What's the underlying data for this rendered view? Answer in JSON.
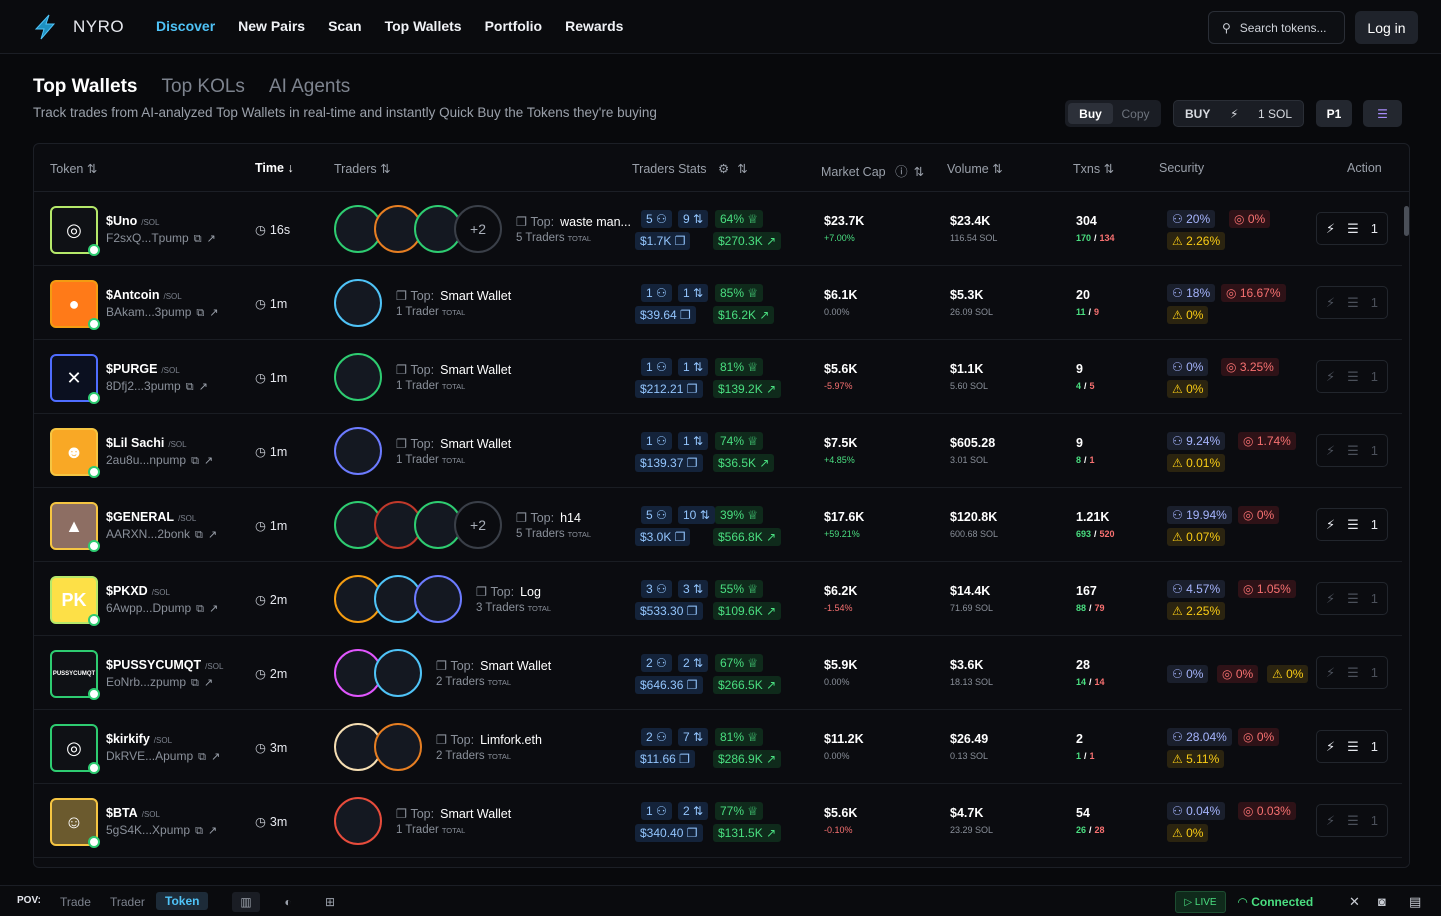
{
  "app": {
    "name": "NYRO"
  },
  "nav": [
    "Discover",
    "New Pairs",
    "Scan",
    "Top Wallets",
    "Portfolio",
    "Rewards"
  ],
  "search": {
    "placeholder": "Search tokens..."
  },
  "login": "Log in",
  "tabs": [
    "Top Wallets",
    "Top KOLs",
    "AI Agents"
  ],
  "subtitle": "Track trades from AI-analyzed Top Wallets in real-time and instantly Quick Buy the Tokens they're buying",
  "controls": {
    "buy": "Buy",
    "copy": "Copy",
    "buy_label": "BUY",
    "amount": "1 SOL",
    "preset": "P1"
  },
  "headers": {
    "token": "Token",
    "time": "Time",
    "traders": "Traders",
    "traders_stats": "Traders Stats",
    "market_cap": "Market Cap",
    "volume": "Volume",
    "txns": "Txns",
    "security": "Security",
    "action": "Action"
  },
  "rows": [
    {
      "name": "$Uno",
      "chain": "/SOL",
      "addr": "F2sxQ...Tpump",
      "time": "16s",
      "top_label": "Top:",
      "top": "waste man...",
      "traders": "5 Traders",
      "s1": "5",
      "s2": "9",
      "s3": "64%",
      "s4": "$1.7K",
      "s5": "$270.3K",
      "mc": "$23.7K",
      "mcc": "+7.00%",
      "vol": "$23.4K",
      "vols": "116.54 SOL",
      "tx": "304",
      "buys": "170",
      "sells": "134",
      "sec1": "20%",
      "sec2": "0%",
      "sec3": "2.26%",
      "act": "1",
      "more": "+2"
    },
    {
      "name": "$Antcoin",
      "chain": "/SOL",
      "addr": "BAkam...3pump",
      "time": "1m",
      "top_label": "Top:",
      "top": "Smart Wallet",
      "traders": "1 Trader",
      "s1": "1",
      "s2": "1",
      "s3": "85%",
      "s4": "$39.64",
      "s5": "$16.2K",
      "mc": "$6.1K",
      "mcc": "0.00%",
      "vol": "$5.3K",
      "vols": "26.09 SOL",
      "tx": "20",
      "buys": "11",
      "sells": "9",
      "sec1": "18%",
      "sec2": "16.67%",
      "sec3": "0%",
      "act": "1"
    },
    {
      "name": "$PURGE",
      "chain": "/SOL",
      "addr": "8Dfj2...3pump",
      "time": "1m",
      "top_label": "Top:",
      "top": "Smart Wallet",
      "traders": "1 Trader",
      "s1": "1",
      "s2": "1",
      "s3": "81%",
      "s4": "$212.21",
      "s5": "$139.2K",
      "mc": "$5.6K",
      "mcc": "-5.97%",
      "vol": "$1.1K",
      "vols": "5.60 SOL",
      "tx": "9",
      "buys": "4",
      "sells": "5",
      "sec1": "0%",
      "sec2": "3.25%",
      "sec3": "0%",
      "act": "1"
    },
    {
      "name": "$Lil Sachi",
      "chain": "/SOL",
      "addr": "2au8u...npump",
      "time": "1m",
      "top_label": "Top:",
      "top": "Smart Wallet",
      "traders": "1 Trader",
      "s1": "1",
      "s2": "1",
      "s3": "74%",
      "s4": "$139.37",
      "s5": "$36.5K",
      "mc": "$7.5K",
      "mcc": "+4.85%",
      "vol": "$605.28",
      "vols": "3.01 SOL",
      "tx": "9",
      "buys": "8",
      "sells": "1",
      "sec1": "9.24%",
      "sec2": "1.74%",
      "sec3": "0.01%",
      "act": "1"
    },
    {
      "name": "$GENERAL",
      "chain": "/SOL",
      "addr": "AARXN...2bonk",
      "time": "1m",
      "top_label": "Top:",
      "top": "h14",
      "traders": "5 Traders",
      "s1": "5",
      "s2": "10",
      "s3": "39%",
      "s4": "$3.0K",
      "s5": "$566.8K",
      "mc": "$17.6K",
      "mcc": "+59.21%",
      "vol": "$120.8K",
      "vols": "600.68 SOL",
      "tx": "1.21K",
      "buys": "693",
      "sells": "520",
      "sec1": "19.94%",
      "sec2": "0%",
      "sec3": "0.07%",
      "act": "1",
      "more": "+2"
    },
    {
      "name": "$PKXD",
      "chain": "/SOL",
      "addr": "6Awpp...Dpump",
      "time": "2m",
      "top_label": "Top:",
      "top": "Log",
      "traders": "3 Traders",
      "s1": "3",
      "s2": "3",
      "s3": "55%",
      "s4": "$533.30",
      "s5": "$109.6K",
      "mc": "$6.2K",
      "mcc": "-1.54%",
      "vol": "$14.4K",
      "vols": "71.69 SOL",
      "tx": "167",
      "buys": "88",
      "sells": "79",
      "sec1": "4.57%",
      "sec2": "1.05%",
      "sec3": "2.25%",
      "act": "1"
    },
    {
      "name": "$PUSSYCUMQT",
      "chain": "/SOL",
      "addr": "EoNrb...zpump",
      "time": "2m",
      "top_label": "Top:",
      "top": "Smart Wallet",
      "traders": "2 Traders",
      "s1": "2",
      "s2": "2",
      "s3": "67%",
      "s4": "$646.36",
      "s5": "$266.5K",
      "mc": "$5.9K",
      "mcc": "0.00%",
      "vol": "$3.6K",
      "vols": "18.13 SOL",
      "tx": "28",
      "buys": "14",
      "sells": "14",
      "sec1": "0%",
      "sec2": "0%",
      "sec3": "0%",
      "act": "1",
      "logo_text": "PUSSYCUMQT"
    },
    {
      "name": "$kirkify",
      "chain": "/SOL",
      "addr": "DkRVE...Apump",
      "time": "3m",
      "top_label": "Top:",
      "top": "Limfork.eth",
      "traders": "2 Traders",
      "s1": "2",
      "s2": "7",
      "s3": "81%",
      "s4": "$11.66",
      "s5": "$286.9K",
      "mc": "$11.2K",
      "mcc": "0.00%",
      "vol": "$26.49",
      "vols": "0.13 SOL",
      "tx": "2",
      "buys": "1",
      "sells": "1",
      "sec1": "28.04%",
      "sec2": "0%",
      "sec3": "5.11%",
      "act": "1"
    },
    {
      "name": "$BTA",
      "chain": "/SOL",
      "addr": "5gS4K...Xpump",
      "time": "3m",
      "top_label": "Top:",
      "top": "Smart Wallet",
      "traders": "1 Trader",
      "s1": "1",
      "s2": "2",
      "s3": "77%",
      "s4": "$340.40",
      "s5": "$131.5K",
      "mc": "$5.6K",
      "mcc": "-0.10%",
      "vol": "$4.7K",
      "vols": "23.29 SOL",
      "tx": "54",
      "buys": "26",
      "sells": "28",
      "sec1": "0.04%",
      "sec2": "0.03%",
      "sec3": "0%",
      "act": "1"
    }
  ],
  "total_label": "TOTAL",
  "bottom": {
    "pov": "POV:",
    "trade": "Trade",
    "trader": "Trader",
    "token": "Token",
    "live": "LIVE",
    "connected": "Connected"
  },
  "colors": {
    "accent": "#4fc3f7",
    "green": "#4ade80",
    "red": "#f87171",
    "yellow": "#facc15"
  }
}
